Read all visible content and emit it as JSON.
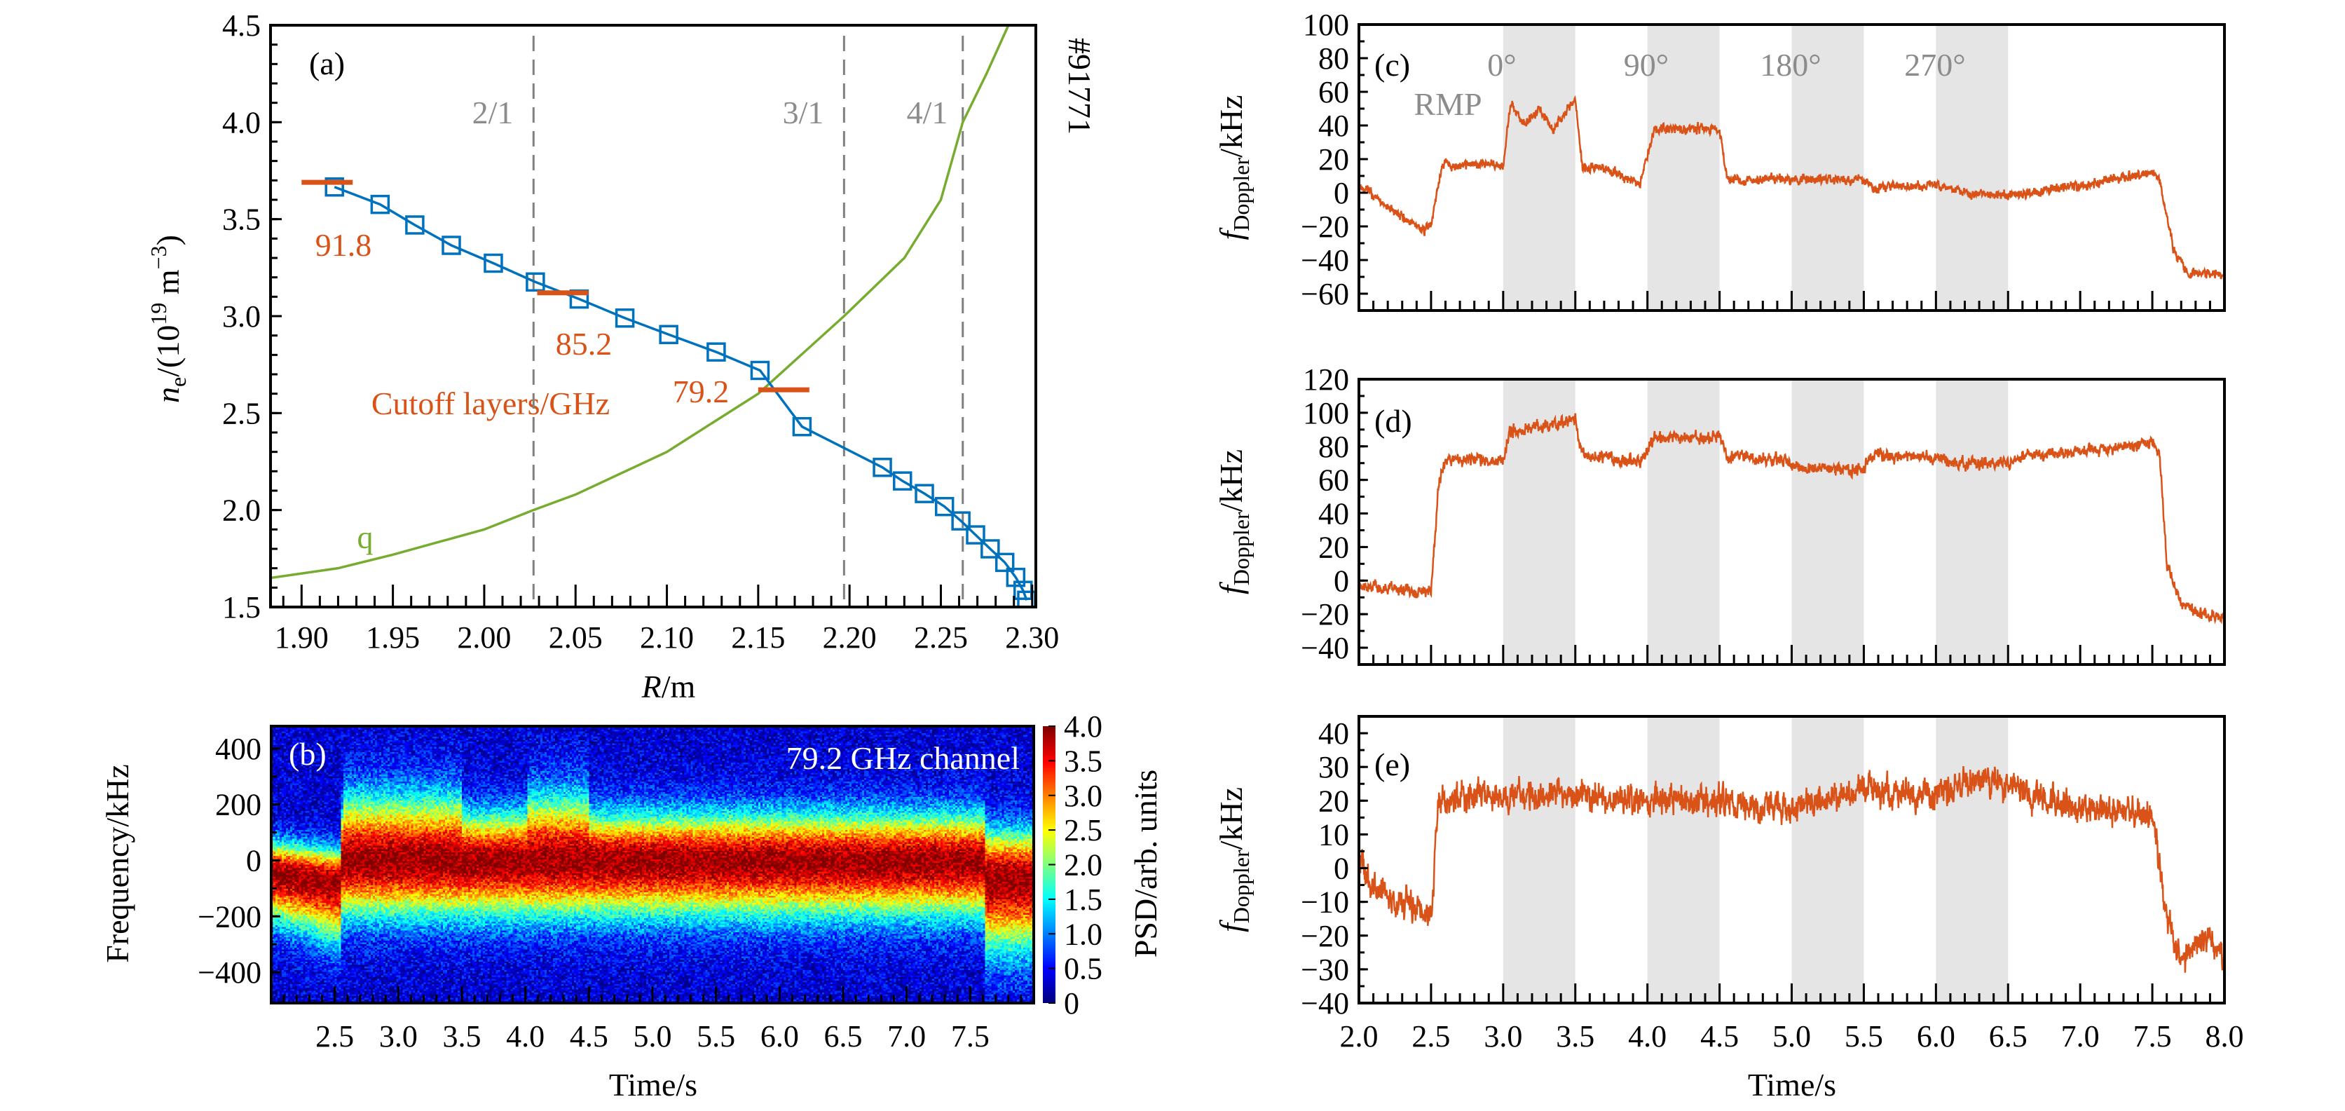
{
  "colors": {
    "density": "#0072bd",
    "cutoff": "#d95319",
    "q": "#77ac30",
    "doppler": "#d95319",
    "rational": "#808080",
    "rmp_band": "#e5e5e5"
  },
  "chart_data": [
    {
      "panel": "(a)",
      "type": "line",
      "shot": "#91771",
      "xlabel": {
        "var": "R",
        "unit": "/m"
      },
      "ylabel": {
        "var": "n",
        "sub": "e",
        "pre": "/(10",
        "sup": "19",
        "mid": " m",
        "sup2": "−3",
        "end": ")"
      },
      "xlim": [
        1.883,
        2.302
      ],
      "ylim": [
        1.5,
        4.5
      ],
      "xticks": [
        "1.90",
        "1.95",
        "2.00",
        "2.05",
        "2.10",
        "2.15",
        "2.20",
        "2.25",
        "2.30"
      ],
      "yticks": [
        "1.5",
        "2.0",
        "2.5",
        "3.0",
        "3.5",
        "4.0",
        "4.5"
      ],
      "density_profile": {
        "x": [
          1.918,
          1.943,
          1.962,
          1.982,
          2.005,
          2.028,
          2.052,
          2.077,
          2.101,
          2.127,
          2.151,
          2.174,
          2.218,
          2.229,
          2.241,
          2.252,
          2.261,
          2.269,
          2.277,
          2.285,
          2.291,
          2.295,
          2.297
        ],
        "y": [
          3.666,
          3.576,
          3.47,
          3.365,
          3.273,
          3.176,
          3.088,
          2.99,
          2.905,
          2.815,
          2.72,
          2.43,
          2.22,
          2.15,
          2.085,
          2.018,
          1.944,
          1.872,
          1.8,
          1.73,
          1.653,
          1.586,
          1.535
        ]
      },
      "q_profile": {
        "label": "q",
        "x": [
          1.883,
          1.92,
          1.95,
          2.0,
          2.027,
          2.05,
          2.1,
          2.15,
          2.197,
          2.23,
          2.25,
          2.262,
          2.275,
          2.287
        ],
        "y": [
          1.65,
          1.7,
          1.77,
          1.9,
          2.0,
          2.08,
          2.3,
          2.6,
          3.0,
          3.3,
          3.6,
          4.0,
          4.25,
          4.5
        ]
      },
      "rational_surfaces": [
        {
          "label": "2/1",
          "R": 2.027
        },
        {
          "label": "3/1",
          "R": 2.197
        },
        {
          "label": "4/1",
          "R": 2.262
        }
      ],
      "cutoff_layers": {
        "title": "Cutoff layers/GHz",
        "items": [
          {
            "label": "91.8",
            "ne": 3.69,
            "R": [
              1.9,
              1.928
            ]
          },
          {
            "label": "85.2",
            "ne": 3.12,
            "R": [
              2.029,
              2.057
            ]
          },
          {
            "label": "79.2",
            "ne": 2.62,
            "R": [
              2.15,
              2.178
            ]
          }
        ]
      }
    },
    {
      "panel": "(b)",
      "type": "heatmap",
      "annotation": "79.2 GHz channel",
      "xlabel": "Time/s",
      "ylabel": "Frequency/kHz",
      "xlim": [
        2.0,
        8.0
      ],
      "ylim": [
        -510,
        480
      ],
      "xticks": [
        "2.5",
        "3.0",
        "3.5",
        "4.0",
        "4.5",
        "5.0",
        "5.5",
        "6.0",
        "6.5",
        "7.0",
        "7.5"
      ],
      "yticks": [
        "−400",
        "−200",
        "0",
        "200",
        "400"
      ],
      "colorbar": {
        "label": "PSD/arb. units",
        "range": [
          0,
          4
        ],
        "ticks": [
          "0",
          "0.5",
          "1.0",
          "1.5",
          "2.0",
          "2.5",
          "3.0",
          "3.5",
          "4.0"
        ],
        "colormap": "jet"
      }
    },
    {
      "panel": "(c)",
      "type": "line",
      "ylabel": {
        "var": "f",
        "sub": "Doppler",
        "unit": "/kHz"
      },
      "xlim": [
        2.0,
        8.0
      ],
      "ylim": [
        -70,
        100
      ],
      "yticks": [
        "−60",
        "−40",
        "−20",
        "0",
        "20",
        "40",
        "60",
        "80",
        "100"
      ],
      "rmp_label": "RMP",
      "rmp_phases": [
        {
          "label": "0°",
          "t": [
            3.0,
            3.5
          ]
        },
        {
          "label": "90°",
          "t": [
            4.0,
            4.5
          ]
        },
        {
          "label": "180°",
          "t": [
            5.0,
            5.5
          ]
        },
        {
          "label": "270°",
          "t": [
            6.0,
            6.5
          ]
        }
      ],
      "series": {
        "t": [
          2.0,
          2.1,
          2.25,
          2.45,
          2.5,
          2.55,
          2.6,
          2.65,
          2.9,
          3.0,
          3.05,
          3.15,
          3.25,
          3.35,
          3.45,
          3.5,
          3.55,
          3.7,
          3.95,
          4.05,
          4.5,
          4.55,
          5.5,
          5.55,
          6.0,
          6.2,
          6.5,
          6.55,
          7.5,
          7.55,
          7.65,
          7.75,
          8.0
        ],
        "f": [
          5,
          -2,
          -12,
          -22,
          -20,
          5,
          20,
          15,
          18,
          15,
          52,
          42,
          50,
          38,
          50,
          55,
          15,
          15,
          5,
          38,
          38,
          8,
          8,
          3,
          5,
          0,
          -2,
          -2,
          12,
          8,
          -35,
          -48,
          -48
        ],
        "noise": 4
      }
    },
    {
      "panel": "(d)",
      "type": "line",
      "ylabel": {
        "var": "f",
        "sub": "Doppler",
        "unit": "/kHz"
      },
      "xlim": [
        2.0,
        8.0
      ],
      "ylim": [
        -50,
        120
      ],
      "yticks": [
        "−40",
        "−20",
        "0",
        "20",
        "40",
        "60",
        "80",
        "100",
        "120"
      ],
      "rmp_phases": [
        {
          "t": [
            3.0,
            3.5
          ]
        },
        {
          "t": [
            4.0,
            4.5
          ]
        },
        {
          "t": [
            5.0,
            5.5
          ]
        },
        {
          "t": [
            6.0,
            6.5
          ]
        }
      ],
      "series": {
        "t": [
          2.0,
          2.5,
          2.55,
          2.6,
          3.0,
          3.05,
          3.5,
          3.55,
          3.95,
          4.05,
          4.5,
          4.55,
          4.95,
          5.05,
          5.5,
          5.55,
          6.0,
          6.1,
          6.5,
          6.6,
          7.5,
          7.55,
          7.6,
          7.7,
          8.0
        ],
        "f": [
          -3,
          -7,
          55,
          72,
          72,
          90,
          95,
          75,
          70,
          85,
          85,
          74,
          72,
          67,
          66,
          74,
          74,
          70,
          70,
          74,
          82,
          75,
          10,
          -15,
          -23
        ],
        "noise": 5
      }
    },
    {
      "panel": "(e)",
      "type": "line",
      "xlabel": "Time/s",
      "ylabel": {
        "var": "f",
        "sub": "Doppler",
        "unit": "/kHz"
      },
      "xlim": [
        2.0,
        8.0
      ],
      "ylim": [
        -40,
        45
      ],
      "xticks": [
        "2.0",
        "2.5",
        "3.0",
        "3.5",
        "4.0",
        "4.5",
        "5.0",
        "5.5",
        "6.0",
        "6.5",
        "7.0",
        "7.5",
        "8.0"
      ],
      "yticks": [
        "−40",
        "−30",
        "−20",
        "−10",
        "0",
        "10",
        "20",
        "30",
        "40"
      ],
      "rmp_phases": [
        {
          "t": [
            3.0,
            3.5
          ]
        },
        {
          "t": [
            4.0,
            4.5
          ]
        },
        {
          "t": [
            5.0,
            5.5
          ]
        },
        {
          "t": [
            6.0,
            6.5
          ]
        }
      ],
      "series": {
        "t": [
          2.0,
          2.1,
          2.5,
          2.55,
          2.6,
          3.0,
          3.5,
          4.0,
          4.5,
          5.0,
          5.5,
          6.0,
          6.3,
          6.5,
          7.0,
          7.5,
          7.6,
          7.7,
          7.8,
          7.9,
          8.0
        ],
        "f": [
          0,
          -5,
          -15,
          20,
          22,
          21,
          22,
          20,
          20,
          18,
          23,
          22,
          26,
          24,
          18,
          16,
          -15,
          -26,
          -22,
          -20,
          -28
        ],
        "noise": 6
      }
    }
  ]
}
